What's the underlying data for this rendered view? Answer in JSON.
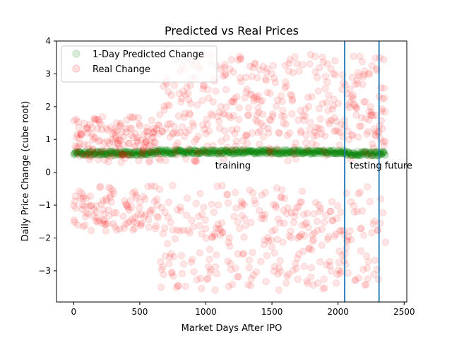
{
  "chart_data": {
    "type": "scatter",
    "title": "Predicted vs Real Prices",
    "xlabel": "Market Days After IPO",
    "ylabel": "Daily Price Change (cube root)",
    "xlim": [
      -130,
      2520
    ],
    "ylim": [
      -3.95,
      4.0
    ],
    "xticks": [
      0,
      500,
      1000,
      1500,
      2000,
      2500
    ],
    "yticks": [
      -3,
      -2,
      -1,
      0,
      1,
      2,
      3,
      4
    ],
    "legend_position": "top-left",
    "grid": false,
    "series": [
      {
        "name": "1-Day Predicted Change",
        "color": "#008000",
        "alpha": 0.12,
        "x_range": [
          0,
          2360
        ],
        "values_approx": {
          "segments": [
            {
              "x_start": 0,
              "x_end": 600,
              "y_mean": 0.58
            },
            {
              "x_start": 600,
              "x_end": 2050,
              "y_mean": 0.62
            },
            {
              "x_start": 2050,
              "x_end": 2360,
              "y_mean": 0.57
            }
          ],
          "y_range": [
            0.48,
            0.7
          ]
        }
      },
      {
        "name": "Real Change",
        "color": "#ff0000",
        "alpha": 0.1,
        "x_range": [
          0,
          2360
        ],
        "values_approx": {
          "segments": [
            {
              "x_start": 0,
              "x_end": 650,
              "positive_range": [
                0.3,
                1.7
              ],
              "negative_range": [
                -1.8,
                -0.4
              ]
            },
            {
              "x_start": 650,
              "x_end": 2360,
              "positive_range": [
                0.3,
                3.6
              ],
              "negative_range": [
                -3.6,
                -0.4
              ]
            }
          ]
        }
      }
    ],
    "vlines": [
      {
        "x": 2050,
        "color": "#1f77b4"
      },
      {
        "x": 2310,
        "color": "#1f77b4"
      }
    ],
    "annotations": [
      {
        "text": "training",
        "x": 1070,
        "y": 0.22
      },
      {
        "text": "testing future",
        "x": 2090,
        "y": 0.22
      }
    ]
  }
}
